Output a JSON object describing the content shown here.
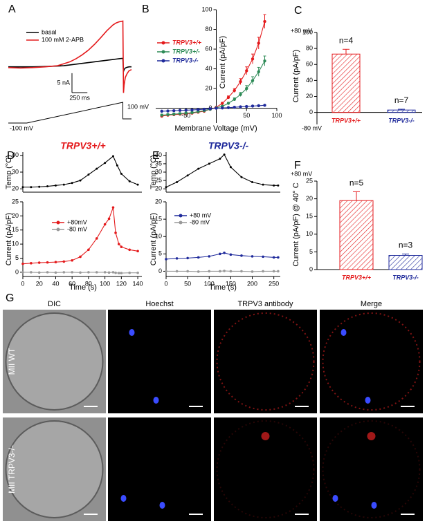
{
  "chart_data": [
    {
      "type": "trace",
      "panel": "A",
      "x": [
        0,
        200,
        400,
        600,
        800,
        900,
        1000,
        1100,
        1200,
        1300,
        1400,
        1500,
        1600,
        1700,
        1750,
        1800,
        1860,
        1870,
        1880,
        1900,
        1930,
        1960,
        2000
      ],
      "xlim": [
        0,
        2000
      ],
      "ylim": [
        -8,
        13
      ],
      "series": [
        {
          "name": "basal",
          "color": "#000000",
          "values": [
            -0.3,
            -0.3,
            -0.3,
            -0.2,
            -0.1,
            0,
            0.2,
            0.4,
            0.6,
            0.8,
            1,
            1.2,
            1.4,
            1.6,
            1.7,
            1.8,
            1.9,
            -1.5,
            -1,
            -0.6,
            -0.4,
            -0.3,
            -0.3
          ]
        },
        {
          "name": "100 mM 2-APB",
          "color": "#e41a1c",
          "values": [
            -0.5,
            -0.6,
            -0.5,
            -0.3,
            0,
            0.5,
            1,
            1.8,
            2.8,
            4,
            5.5,
            7.2,
            9,
            10.5,
            11,
            11.3,
            11.5,
            -7,
            -5,
            -3,
            -2,
            -1.3,
            -1
          ]
        }
      ],
      "legend": "upper left",
      "scalebar": {
        "x": 250,
        "x_label": "250 ms",
        "y": 5,
        "y_label": "5 nA"
      },
      "protocol": {
        "x": [
          0,
          300,
          1860,
          1860,
          2000
        ],
        "values": [
          -100,
          -100,
          100,
          -60,
          -60
        ],
        "ylim": [
          -100,
          100
        ],
        "labels": [
          "-100 mV",
          "100 mV"
        ]
      }
    },
    {
      "type": "line",
      "panel": "B",
      "x": [
        -90,
        -80,
        -70,
        -60,
        -50,
        -40,
        -30,
        -20,
        -10,
        0,
        10,
        20,
        30,
        40,
        50,
        60,
        70,
        80
      ],
      "xlim": [
        -100,
        100
      ],
      "xticks": [
        -50,
        50,
        100
      ],
      "ylim": [
        -15,
        100
      ],
      "yticks": [
        0,
        20,
        40,
        60,
        80,
        100
      ],
      "y_label": "Current (pA/pF)",
      "x_label": "Membrane Voltage (mV)",
      "legend": "upper left",
      "markers": true,
      "series": [
        {
          "name": "TRPV3+/+",
          "color": "#e41a1c",
          "values": [
            -8,
            -7,
            -6.5,
            -6,
            -5.5,
            -5,
            -4,
            -3,
            -1,
            1,
            5,
            11,
            18,
            27,
            38,
            50,
            66,
            88
          ],
          "errors": [
            1,
            1,
            1,
            1,
            1,
            1,
            1,
            1,
            0.5,
            0.5,
            1,
            1.5,
            2,
            3,
            4,
            5,
            6,
            7
          ]
        },
        {
          "name": "TRPV3+/-",
          "color": "#2e8b57",
          "values": [
            -7,
            -6.5,
            -6,
            -5.5,
            -5,
            -4.5,
            -3.5,
            -2.5,
            -1,
            0.5,
            2,
            5,
            9,
            14,
            20,
            28,
            37,
            48
          ],
          "errors": [
            1,
            1,
            1,
            1,
            1,
            1,
            1,
            1,
            0.5,
            0.5,
            1,
            1,
            1.5,
            2,
            3,
            4,
            4.5,
            5
          ]
        },
        {
          "name": "TRPV3-/-",
          "color": "#1f2a9b",
          "values": [
            -3,
            -2.8,
            -2.5,
            -2.2,
            -2,
            -1.7,
            -1.4,
            -1,
            -0.5,
            0,
            0.3,
            0.6,
            1,
            1.4,
            1.8,
            2.2,
            2.6,
            3
          ],
          "errors": [
            0.5,
            0.5,
            0.5,
            0.5,
            0.5,
            0.5,
            0.5,
            0.5,
            0.5,
            0.5,
            0.5,
            0.5,
            0.5,
            0.5,
            0.5,
            0.5,
            0.5,
            0.5
          ]
        }
      ]
    },
    {
      "type": "bar",
      "panel": "C",
      "categories": [
        "TRPV3+/+",
        "TRPV3-/-"
      ],
      "values": [
        73,
        3
      ],
      "errors": [
        6,
        1
      ],
      "colors": [
        "#e41a1c",
        "#1f2a9b"
      ],
      "hatch": true,
      "ylim": [
        -15,
        100
      ],
      "yticks": [
        0,
        20,
        40,
        60,
        80,
        100
      ],
      "y_label": "Current (pA/pF)",
      "bar_labels": [
        "n=4",
        "n=7"
      ],
      "annotations": [
        "+80 mV",
        "-80 mV"
      ]
    },
    {
      "type": "line",
      "panel": "D",
      "title": "TRPV3+/+",
      "title_color": "#e41a1c",
      "x": [
        0,
        10,
        20,
        30,
        40,
        50,
        60,
        70,
        80,
        90,
        100,
        110,
        115,
        120,
        130,
        140
      ],
      "xlim": [
        0,
        145
      ],
      "ylim": [
        18,
        42
      ],
      "yticks": [
        20,
        30,
        40
      ],
      "y_label": "Temp (°C)",
      "markers": true,
      "series": [
        {
          "color": "#000000",
          "values": [
            21,
            21,
            21.2,
            21.5,
            22,
            22.5,
            23.5,
            25,
            28.5,
            32,
            35.5,
            39.5,
            34,
            29,
            24.5,
            22.5
          ]
        }
      ]
    },
    {
      "type": "line",
      "x": [
        0,
        10,
        20,
        30,
        40,
        50,
        60,
        70,
        80,
        90,
        100,
        105,
        110,
        113,
        117,
        120,
        130,
        140
      ],
      "xlim": [
        0,
        145
      ],
      "xticks": [
        0,
        20,
        40,
        60,
        80,
        100,
        120,
        140
      ],
      "ylim": [
        -1.5,
        25
      ],
      "yticks": [
        0,
        5,
        10,
        15,
        20,
        25
      ],
      "y_label": "Current (pA/pF)",
      "x_label": "Time (s)",
      "legend": "upper left",
      "markers": true,
      "series": [
        {
          "name": "+80mV",
          "color": "#e41a1c",
          "values": [
            3,
            3.2,
            3.4,
            3.5,
            3.6,
            3.8,
            4.2,
            5.5,
            8,
            12,
            17,
            19,
            23,
            14,
            10,
            9,
            8,
            7.5
          ]
        },
        {
          "name": "-80 mV",
          "color": "#999999",
          "values": [
            0,
            0,
            -0.1,
            0,
            -0.1,
            0,
            0,
            -0.1,
            0,
            0,
            0,
            -0.1,
            0,
            -0.2,
            -0.3,
            -0.3,
            -0.2,
            -0.2
          ]
        }
      ]
    },
    {
      "type": "line",
      "panel": "E",
      "title": "TRPV3-/-",
      "title_color": "#1f2a9b",
      "x": [
        0,
        25,
        50,
        75,
        100,
        125,
        135,
        150,
        175,
        200,
        225,
        250,
        260
      ],
      "xlim": [
        0,
        265
      ],
      "ylim": [
        18,
        42
      ],
      "yticks": [
        20,
        25,
        30,
        35,
        40
      ],
      "y_label": "Temp (°C)",
      "markers": true,
      "series": [
        {
          "color": "#000000",
          "values": [
            21,
            24,
            28,
            32,
            35,
            38,
            40.5,
            33,
            27,
            24,
            22.5,
            22,
            22
          ]
        }
      ]
    },
    {
      "type": "line",
      "x": [
        0,
        25,
        50,
        75,
        100,
        125,
        135,
        150,
        175,
        200,
        225,
        250,
        260
      ],
      "xlim": [
        0,
        265
      ],
      "xticks": [
        0,
        50,
        100,
        150,
        200,
        250
      ],
      "ylim": [
        -1.5,
        20
      ],
      "yticks": [
        0,
        5,
        10,
        15,
        20
      ],
      "y_label": "Current (pA/pF)",
      "x_label": "Time (s)",
      "legend": "upper left",
      "markers": true,
      "series": [
        {
          "name": "+80 mV",
          "color": "#1f2a9b",
          "values": [
            3.5,
            3.7,
            3.8,
            4,
            4.3,
            5,
            5.3,
            4.8,
            4.5,
            4.3,
            4.2,
            4,
            4
          ]
        },
        {
          "name": "-80 mV",
          "color": "#999999",
          "values": [
            0,
            0,
            0,
            -0.1,
            0,
            0,
            0.1,
            0,
            0,
            -0.1,
            0,
            0,
            0
          ]
        }
      ]
    },
    {
      "type": "bar",
      "panel": "F",
      "categories": [
        "TRPV3+/+",
        "TRPV3-/-"
      ],
      "values": [
        19.5,
        4
      ],
      "errors": [
        2.5,
        0.4
      ],
      "colors": [
        "#e41a1c",
        "#1f2a9b"
      ],
      "hatch": true,
      "ylim": [
        0,
        25
      ],
      "yticks": [
        0,
        5,
        10,
        15,
        20,
        25
      ],
      "y_label": "Current (pA/pF) @ 40° C",
      "bar_labels": [
        "n=5",
        "n=3"
      ],
      "annotations": [
        "+80 mV"
      ]
    }
  ],
  "panel_g": {
    "panel": "G",
    "columns": [
      "DIC",
      "Hoechst",
      "TRPV3 antibody",
      "Merge"
    ],
    "rows": [
      "MII WT",
      "MII TRPV3-/-"
    ]
  }
}
